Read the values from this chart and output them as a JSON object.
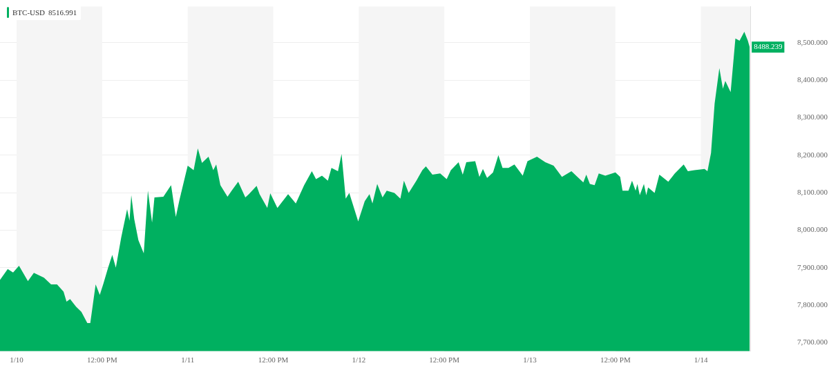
{
  "chart_data": {
    "type": "area",
    "x": [
      "--01-09T21:40",
      "--01-09T22:45",
      "--01-09T23:30",
      "--01-10T00:20",
      "--01-10T01:35",
      "--01-10T02:25",
      "--01-10T03:50",
      "--01-10T04:50",
      "--01-10T05:40",
      "--01-10T06:35",
      "--01-10T07:00",
      "--01-10T07:30",
      "--01-10T08:20",
      "--01-10T09:05",
      "--01-10T09:55",
      "--01-10T10:20",
      "--01-10T11:05",
      "--01-10T11:40",
      "--01-10T12:10",
      "--01-10T12:50",
      "--01-10T13:25",
      "--01-10T13:55",
      "--01-10T14:40",
      "--01-10T15:30",
      "--01-10T15:50",
      "--01-10T16:05",
      "--01-10T16:30",
      "--01-10T17:05",
      "--01-10T17:50",
      "--01-10T18:25",
      "--01-10T19:00",
      "--01-10T19:20",
      "--01-10T20:35",
      "--01-10T21:40",
      "--01-10T22:20",
      "--01-10T22:50",
      "--01-11T00:00",
      "--01-11T00:50",
      "--01-11T01:25",
      "--01-11T02:00",
      "--01-11T02:55",
      "--01-11T03:35",
      "--01-11T04:00",
      "--01-11T04:35",
      "--01-11T05:35",
      "--01-11T06:10",
      "--01-11T07:05",
      "--01-11T08:05",
      "--01-11T08:35",
      "--01-11T09:40",
      "--01-11T10:05",
      "--01-11T11:10",
      "--01-11T11:35",
      "--01-11T12:35",
      "--01-11T14:05",
      "--01-11T15:10",
      "--01-11T16:20",
      "--01-11T17:25",
      "--01-11T18:00",
      "--01-11T18:50",
      "--01-11T19:40",
      "--01-11T20:10",
      "--01-11T21:05",
      "--01-11T21:35",
      "--01-11T22:10",
      "--01-11T22:40",
      "--01-11T23:55",
      "--01-12T00:50",
      "--01-12T01:30",
      "--01-12T01:55",
      "--01-12T02:35",
      "--01-12T03:20",
      "--01-12T03:55",
      "--01-12T05:00",
      "--01-12T05:50",
      "--01-12T06:20",
      "--01-12T07:00",
      "--01-12T08:05",
      "--01-12T08:55",
      "--01-12T09:25",
      "--01-12T10:20",
      "--01-12T11:25",
      "--01-12T12:20",
      "--01-12T12:55",
      "--01-12T14:00",
      "--01-12T14:35",
      "--01-12T15:05",
      "--01-12T16:20",
      "--01-12T16:55",
      "--01-12T17:25",
      "--01-12T18:00",
      "--01-12T18:50",
      "--01-12T19:35",
      "--01-12T20:10",
      "--01-12T21:00",
      "--01-12T21:50",
      "--01-12T23:00",
      "--01-12T23:40",
      "--01-13T01:00",
      "--01-13T02:10",
      "--01-13T03:20",
      "--01-13T04:30",
      "--01-13T05:50",
      "--01-13T07:30",
      "--01-13T07:55",
      "--01-13T08:25",
      "--01-13T09:05",
      "--01-13T09:40",
      "--01-13T10:35",
      "--01-13T12:00",
      "--01-13T12:40",
      "--01-13T13:00",
      "--01-13T13:50",
      "--01-13T14:20",
      "--01-13T14:50",
      "--01-13T15:05",
      "--01-13T15:25",
      "--01-13T16:00",
      "--01-13T16:20",
      "--01-13T16:35",
      "--01-13T17:30",
      "--01-13T18:10",
      "--01-13T19:25",
      "--01-13T20:20",
      "--01-13T21:35",
      "--01-13T22:10",
      "--01-13T23:05",
      "--01-14T00:30",
      "--01-14T00:55",
      "--01-14T01:25",
      "--01-14T01:55",
      "--01-14T02:35",
      "--01-14T03:05",
      "--01-14T03:25",
      "--01-14T04:10",
      "--01-14T04:50",
      "--01-14T05:25",
      "--01-14T06:05",
      "--01-14T06:35",
      "--01-14T06:50"
    ],
    "series": [
      {
        "name": "BTC-USD",
        "color": "#00b060",
        "values": [
          7867,
          7896,
          7887,
          7905,
          7864,
          7886,
          7873,
          7855,
          7855,
          7836,
          7809,
          7816,
          7796,
          7782,
          7752,
          7752,
          7855,
          7827,
          7857,
          7900,
          7934,
          7900,
          7980,
          8056,
          8025,
          8093,
          8029,
          7973,
          7938,
          8105,
          8020,
          8087,
          8089,
          8120,
          8035,
          8080,
          8172,
          8160,
          8218,
          8179,
          8196,
          8160,
          8175,
          8120,
          8089,
          8105,
          8129,
          8087,
          8096,
          8118,
          8096,
          8059,
          8098,
          8059,
          8096,
          8071,
          8120,
          8157,
          8136,
          8145,
          8132,
          8166,
          8157,
          8203,
          8084,
          8099,
          8023,
          8077,
          8096,
          8071,
          8123,
          8087,
          8105,
          8099,
          8084,
          8132,
          8099,
          8132,
          8160,
          8170,
          8148,
          8151,
          8136,
          8160,
          8181,
          8148,
          8181,
          8184,
          8142,
          8163,
          8139,
          8154,
          8200,
          8166,
          8166,
          8175,
          8145,
          8184,
          8196,
          8181,
          8172,
          8142,
          8157,
          8127,
          8148,
          8123,
          8120,
          8151,
          8145,
          8154,
          8142,
          8105,
          8105,
          8132,
          8105,
          8123,
          8093,
          8123,
          8093,
          8114,
          8099,
          8148,
          8129,
          8151,
          8175,
          8157,
          8160,
          8163,
          8157,
          8206,
          8337,
          8432,
          8377,
          8398,
          8368,
          8511,
          8505,
          8529,
          8505,
          8488.239
        ]
      }
    ],
    "xlim": [
      "--01-09T21:40",
      "--01-14T06:55"
    ],
    "xticks": [
      {
        "value": "--01-10T00:00",
        "label": "1/10"
      },
      {
        "value": "--01-10T12:00",
        "label": "12:00 PM"
      },
      {
        "value": "--01-11T00:00",
        "label": "1/11"
      },
      {
        "value": "--01-11T12:00",
        "label": "12:00 PM"
      },
      {
        "value": "--01-12T00:00",
        "label": "1/12"
      },
      {
        "value": "--01-12T12:00",
        "label": "12:00 PM"
      },
      {
        "value": "--01-13T00:00",
        "label": "1/13"
      },
      {
        "value": "--01-13T12:00",
        "label": "12:00 PM"
      },
      {
        "value": "--01-14T00:00",
        "label": "1/14"
      }
    ],
    "ylim": [
      7677,
      8596
    ],
    "yticks": [
      {
        "value": 7700,
        "label": "7,700.000"
      },
      {
        "value": 7800,
        "label": "7,800.000"
      },
      {
        "value": 7900,
        "label": "7,900.000"
      },
      {
        "value": 8000,
        "label": "8,000.000"
      },
      {
        "value": 8100,
        "label": "8,100.000"
      },
      {
        "value": 8200,
        "label": "8,200.000"
      },
      {
        "value": 8300,
        "label": "8,300.000"
      },
      {
        "value": 8400,
        "label": "8,400.000"
      },
      {
        "value": 8500,
        "label": "8,500.000"
      }
    ],
    "bands": [
      {
        "axis": "x",
        "from": "--01-10T00:00",
        "to": "--01-10T12:00",
        "color": "#f5f5f5"
      },
      {
        "axis": "x",
        "from": "--01-11T00:00",
        "to": "--01-11T12:00",
        "color": "#f5f5f5"
      },
      {
        "axis": "x",
        "from": "--01-12T00:00",
        "to": "--01-12T12:00",
        "color": "#f5f5f5"
      },
      {
        "axis": "x",
        "from": "--01-13T00:00",
        "to": "--01-13T12:00",
        "color": "#f5f5f5"
      },
      {
        "axis": "x",
        "from": "--01-14T00:00",
        "to": "--01-14T06:55",
        "color": "#f5f5f5"
      }
    ],
    "annotations": [
      "8516.991",
      {
        "text": "8488.239",
        "x": "--01-14T06:50",
        "y": 8488.239
      }
    ],
    "grid": "y",
    "legend": "top left",
    "marker": "none"
  }
}
